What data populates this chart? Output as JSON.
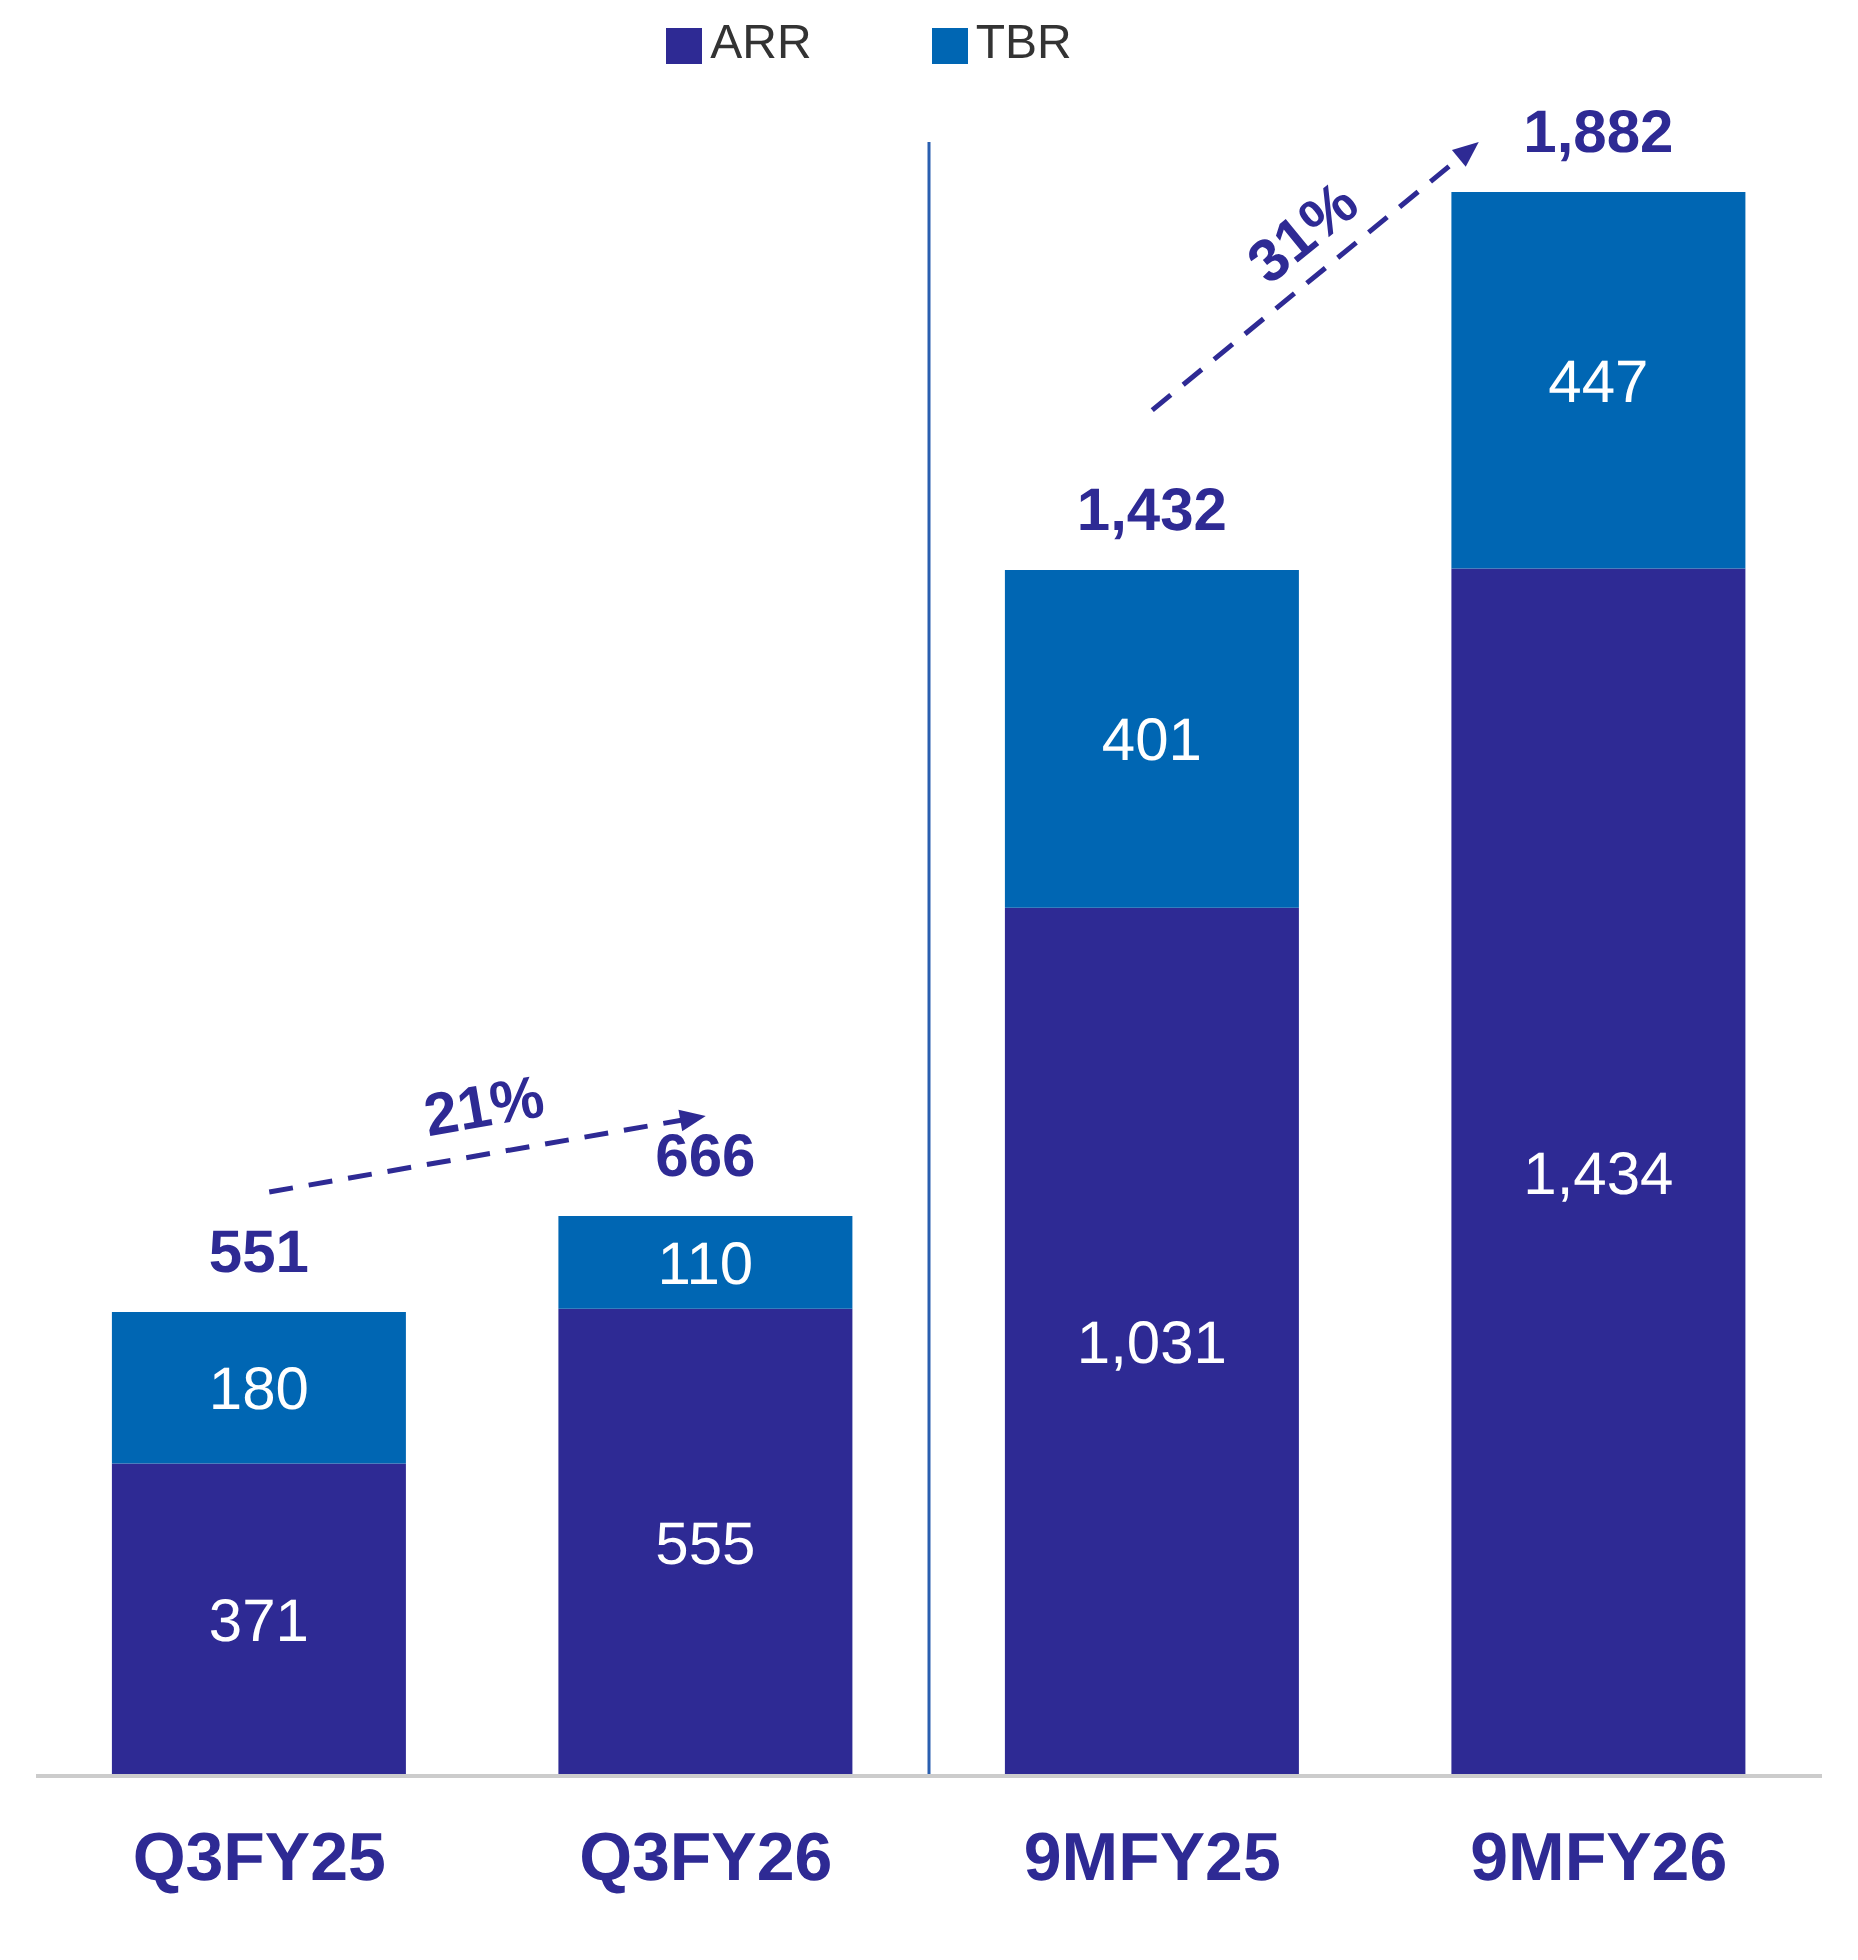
{
  "chart_data": {
    "type": "bar",
    "stacked": true,
    "categories": [
      "Q3FY25",
      "Q3FY26",
      "9MFY25",
      "9MFY26"
    ],
    "series": [
      {
        "name": "ARR",
        "color": "#2e2a94",
        "values": [
          371,
          555,
          1031,
          1434
        ],
        "value_labels": [
          "371",
          "555",
          "1,031",
          "1,434"
        ]
      },
      {
        "name": "TBR",
        "color": "#0066b3",
        "values": [
          180,
          110,
          401,
          447
        ],
        "value_labels": [
          "180",
          "110",
          "401",
          "447"
        ]
      }
    ],
    "totals": [
      "551",
      "666",
      "1,432",
      "1,882"
    ],
    "legend": "top",
    "tick_labels": "x",
    "ref_lines": [
      {
        "axis": "x",
        "value": "9MFY25",
        "color": "#2a5fb0"
      }
    ],
    "annotations": [
      "21%",
      "31%"
    ]
  }
}
